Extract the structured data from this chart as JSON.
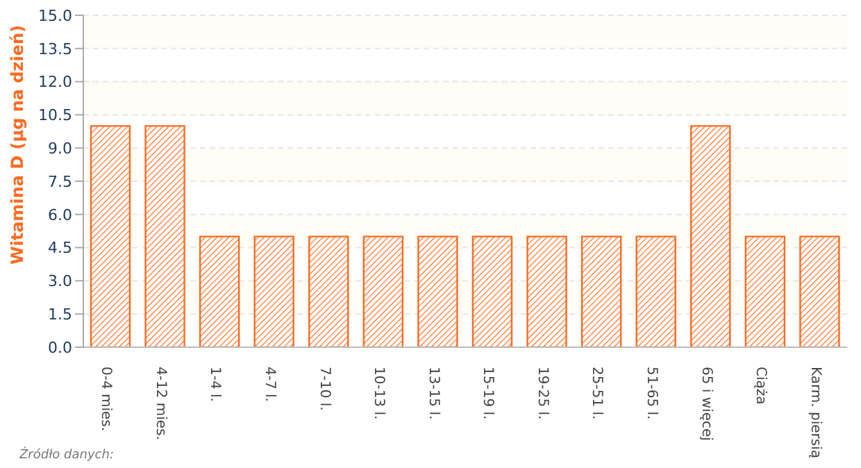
{
  "chart_data": {
    "type": "bar",
    "ylabel": "Witamina D (µg na dzień)",
    "categories": [
      "0-4 mies.",
      "4-12 mies.",
      "1-4 l.",
      "4-7 l.",
      "7-10 l.",
      "10-13 l.",
      "13-15 l.",
      "15-19 l.",
      "19-25 l.",
      "25-51 l.",
      "51-65 l.",
      "65 i więcej",
      "Ciąża",
      "Karm. piersią"
    ],
    "values": [
      10,
      10,
      5,
      5,
      5,
      5,
      5,
      5,
      5,
      5,
      5,
      10,
      5,
      5
    ],
    "color": "#ff6a1f",
    "ylim": [
      0,
      15
    ],
    "yticks": [
      {
        "value": 0,
        "label": "0.0"
      },
      {
        "value": 1.5,
        "label": "1.5"
      },
      {
        "value": 3,
        "label": "3.0"
      },
      {
        "value": 4.5,
        "label": "4.5"
      },
      {
        "value": 6,
        "label": "6.0"
      },
      {
        "value": 7.5,
        "label": "7.5"
      },
      {
        "value": 9,
        "label": "9.0"
      },
      {
        "value": 10.5,
        "label": "10.5"
      },
      {
        "value": 12,
        "label": "12.0"
      },
      {
        "value": 13.5,
        "label": "13.5"
      },
      {
        "value": 15,
        "label": "15.0"
      }
    ],
    "grid": "y",
    "annotations": [
      "Źródło danych:"
    ]
  }
}
